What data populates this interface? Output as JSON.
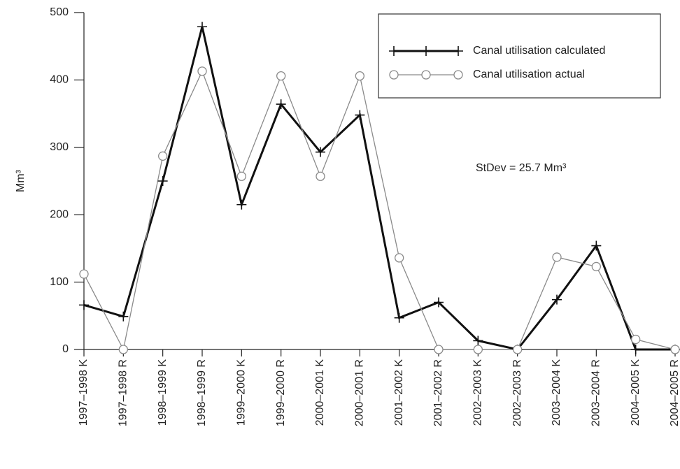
{
  "chart_data": {
    "type": "line",
    "y_label": "Mm³",
    "annotation": "StDev = 25.7 Mm³",
    "categories": [
      "1997–1998 K",
      "1997–1998 R",
      "1998–1999 K",
      "1998–1999 R",
      "1999–2000 K",
      "1999–2000 R",
      "2000–2001 K",
      "2000–2001 R",
      "2001–2002 K",
      "2001–2002 R",
      "2002–2003 K",
      "2002–2003 R",
      "2003–2004 K",
      "2003–2004 R",
      "2004–2005 K",
      "2004–2005 R"
    ],
    "series": [
      {
        "name": "Canal utilisation calculated",
        "color": "#111111",
        "marker": "plus",
        "values": [
          66,
          49,
          250,
          479,
          215,
          364,
          293,
          348,
          47,
          70,
          13,
          0,
          74,
          154,
          0,
          0
        ]
      },
      {
        "name": "Canal utilisation actual",
        "color": "#8a8a8a",
        "marker": "circle",
        "values": [
          112,
          0,
          287,
          413,
          257,
          406,
          257,
          406,
          136,
          0,
          0,
          0,
          137,
          123,
          15,
          0
        ]
      }
    ],
    "ylim": [
      0,
      500
    ],
    "yticks": [
      0,
      100,
      200,
      300,
      400,
      500
    ]
  }
}
